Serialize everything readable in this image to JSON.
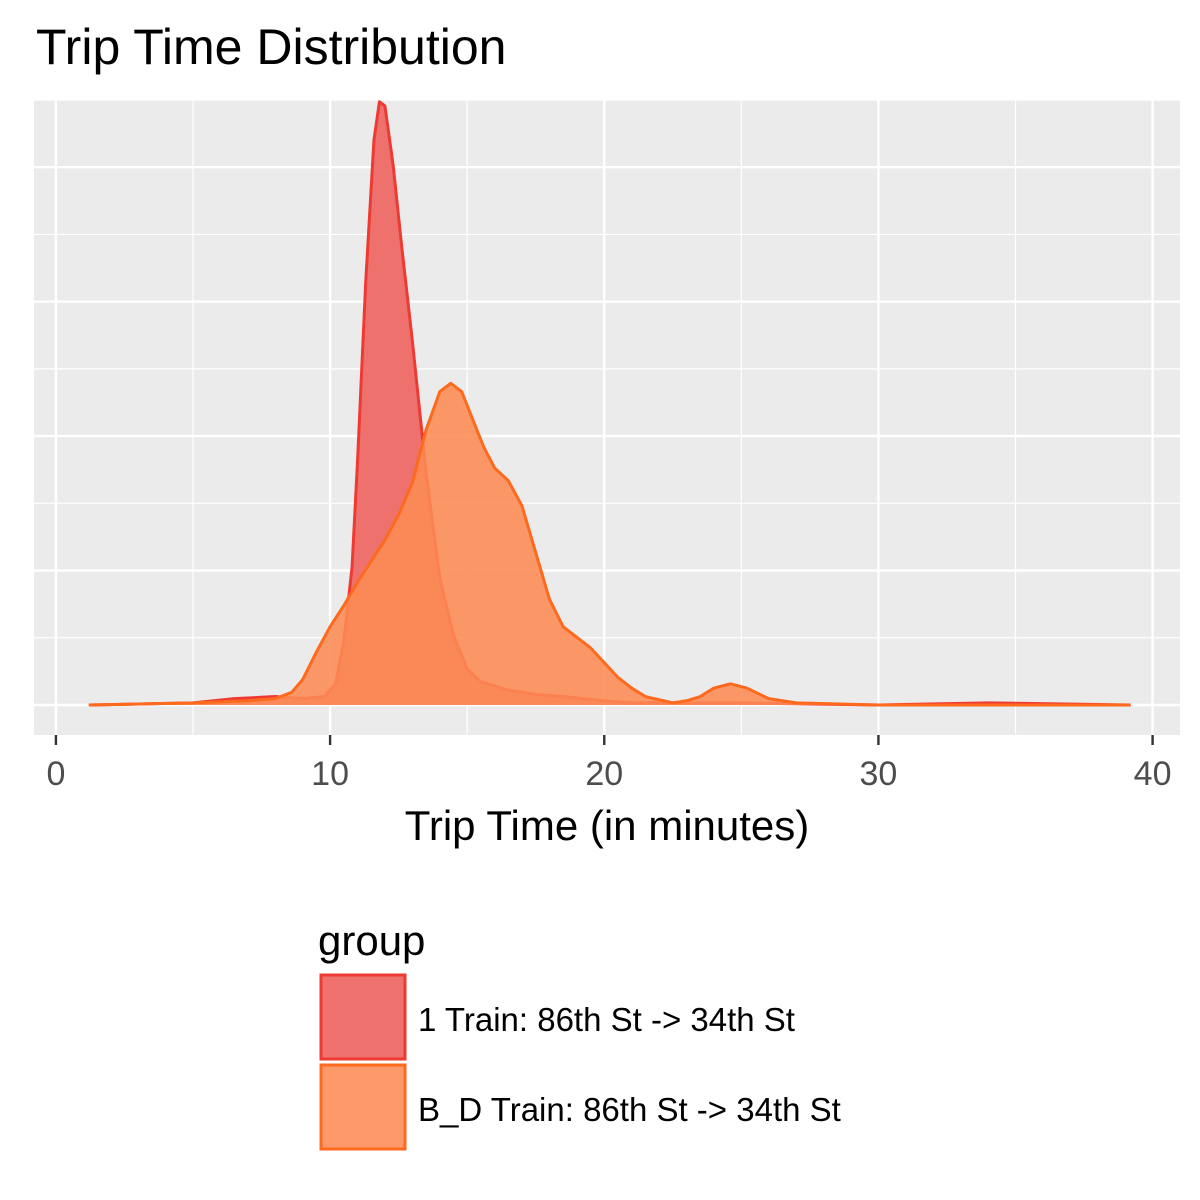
{
  "chart_data": {
    "type": "area",
    "subtype": "density",
    "title": "Trip Time Distribution",
    "xlabel": "Trip Time (in minutes)",
    "ylabel": "",
    "xlim": [
      -0.8,
      41
    ],
    "ylim": [
      0,
      0.3
    ],
    "x_ticks": [
      0,
      10,
      20,
      30,
      40
    ],
    "y_axis_labels_shown": false,
    "grid": true,
    "legend": {
      "title": "group",
      "placement": "bottom"
    },
    "series": [
      {
        "name": "1 Train: 86th St -> 34th St",
        "fill": "#ee6a66",
        "stroke": "#ee3a33",
        "opacity": 0.95,
        "points": [
          [
            1.2,
            0.0
          ],
          [
            5.0,
            0.001
          ],
          [
            6.5,
            0.003
          ],
          [
            8.0,
            0.004
          ],
          [
            9.0,
            0.003
          ],
          [
            9.8,
            0.004
          ],
          [
            10.2,
            0.01
          ],
          [
            10.5,
            0.03
          ],
          [
            10.8,
            0.065
          ],
          [
            11.0,
            0.115
          ],
          [
            11.3,
            0.2
          ],
          [
            11.6,
            0.267
          ],
          [
            11.8,
            0.285
          ],
          [
            12.0,
            0.283
          ],
          [
            12.3,
            0.255
          ],
          [
            12.6,
            0.218
          ],
          [
            13.0,
            0.172
          ],
          [
            13.5,
            0.11
          ],
          [
            14.0,
            0.06
          ],
          [
            14.5,
            0.033
          ],
          [
            15.0,
            0.017
          ],
          [
            15.5,
            0.011
          ],
          [
            16.0,
            0.009
          ],
          [
            16.5,
            0.007
          ],
          [
            17.5,
            0.005
          ],
          [
            18.5,
            0.004
          ],
          [
            20.0,
            0.002
          ],
          [
            21.0,
            0.001
          ],
          [
            25.0,
            0.001
          ],
          [
            30.0,
            0.0
          ],
          [
            34.0,
            0.001
          ],
          [
            39.2,
            0.0
          ]
        ]
      },
      {
        "name": "B_D Train: 86th St -> 34th St",
        "fill": "#fd8b54",
        "stroke": "#fd6a1e",
        "opacity": 0.88,
        "points": [
          [
            1.2,
            0.0
          ],
          [
            5.0,
            0.001
          ],
          [
            7.0,
            0.002
          ],
          [
            8.0,
            0.003
          ],
          [
            8.6,
            0.006
          ],
          [
            9.0,
            0.012
          ],
          [
            9.5,
            0.025
          ],
          [
            10.0,
            0.037
          ],
          [
            10.5,
            0.047
          ],
          [
            11.0,
            0.058
          ],
          [
            11.5,
            0.068
          ],
          [
            12.0,
            0.078
          ],
          [
            12.5,
            0.09
          ],
          [
            13.0,
            0.105
          ],
          [
            13.5,
            0.13
          ],
          [
            14.0,
            0.148
          ],
          [
            14.4,
            0.152
          ],
          [
            14.8,
            0.148
          ],
          [
            15.2,
            0.135
          ],
          [
            15.6,
            0.122
          ],
          [
            16.0,
            0.112
          ],
          [
            16.5,
            0.106
          ],
          [
            17.0,
            0.094
          ],
          [
            17.5,
            0.072
          ],
          [
            18.0,
            0.05
          ],
          [
            18.5,
            0.037
          ],
          [
            19.0,
            0.032
          ],
          [
            19.5,
            0.027
          ],
          [
            20.0,
            0.02
          ],
          [
            20.5,
            0.013
          ],
          [
            21.0,
            0.008
          ],
          [
            21.5,
            0.004
          ],
          [
            22.5,
            0.001
          ],
          [
            23.0,
            0.002
          ],
          [
            23.5,
            0.004
          ],
          [
            24.0,
            0.008
          ],
          [
            24.6,
            0.01
          ],
          [
            25.2,
            0.008
          ],
          [
            26.0,
            0.003
          ],
          [
            27.0,
            0.001
          ],
          [
            30.0,
            0.0
          ],
          [
            35.0,
            0.0
          ],
          [
            39.2,
            0.0
          ]
        ]
      }
    ]
  }
}
